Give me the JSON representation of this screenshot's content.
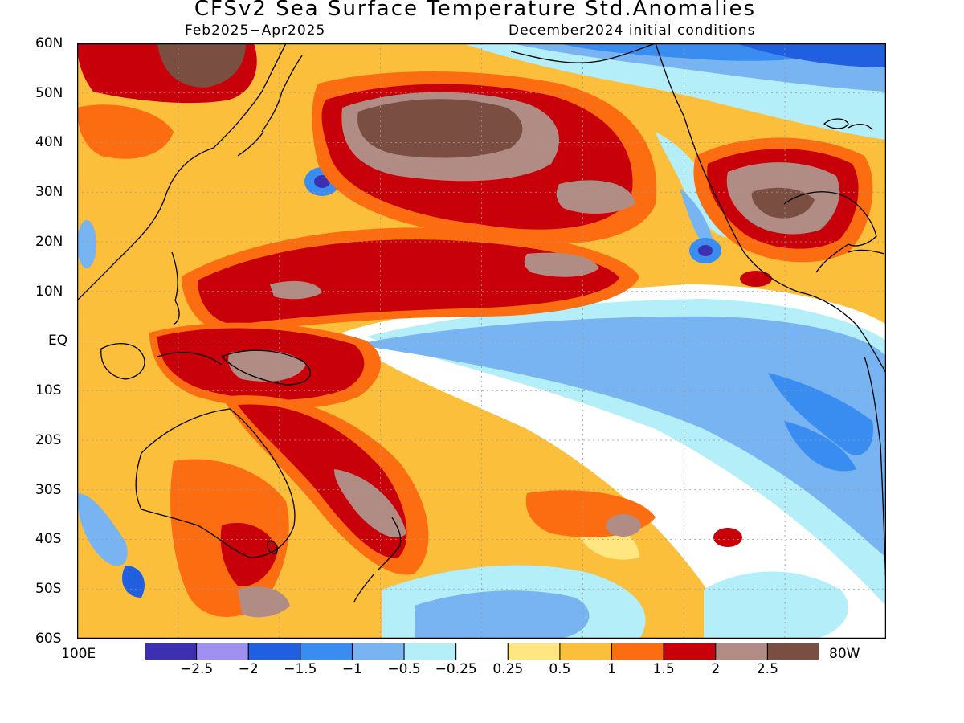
{
  "header": {
    "title": "CFSv2 Sea Surface Temperature Std.Anomalies",
    "period": "Feb2025−Apr2025",
    "init": "December2024 initial conditions"
  },
  "axes": {
    "lat_labels": [
      "60N",
      "50N",
      "40N",
      "30N",
      "20N",
      "10N",
      "EQ",
      "10S",
      "20S",
      "30S",
      "40S",
      "50S",
      "60S"
    ],
    "lon_left": "100E",
    "lon_right": "80W"
  },
  "colorbar": {
    "colors": [
      "#3c2fb0",
      "#9f8ff0",
      "#1f5fe0",
      "#3a8df0",
      "#78b4f2",
      "#b4eef8",
      "#ffffff",
      "#ffe680",
      "#fbbf3c",
      "#fc6c10",
      "#c8000a",
      "#b08c84",
      "#7a4e40"
    ],
    "labels": [
      "−2.5",
      "−2",
      "−1.5",
      "−1",
      "−0.5",
      "−0.25",
      "0.25",
      "0.5",
      "1",
      "1.5",
      "2",
      "2.5"
    ]
  },
  "map_colors": {
    "land_line": "#000000",
    "grid": "#9a9a9a"
  }
}
